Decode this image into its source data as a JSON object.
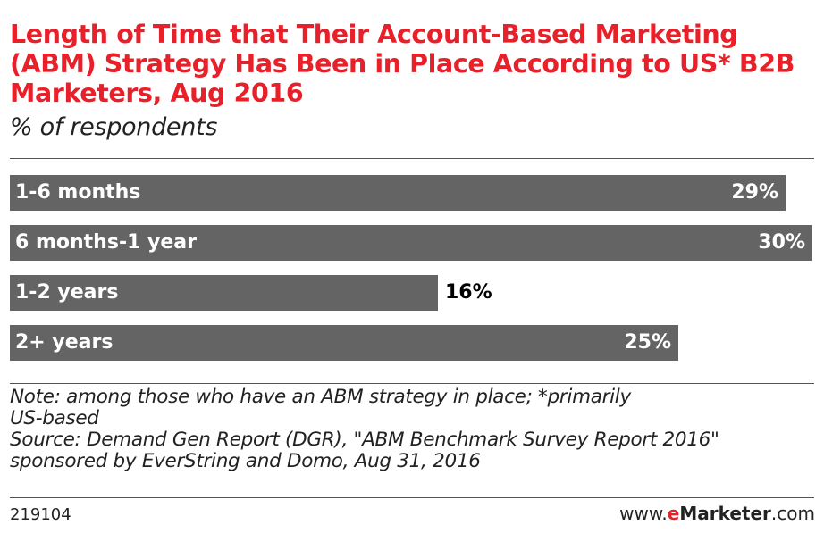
{
  "header": {
    "title": "Length of Time that Their Account-Based Marketing (ABM) Strategy Has Been in Place According to US* B2B Marketers, Aug 2016",
    "subtitle": "% of respondents"
  },
  "chart_data": {
    "type": "bar",
    "orientation": "horizontal",
    "categories": [
      "1-6 months",
      "6 months-1 year",
      "1-2 years",
      "2+ years"
    ],
    "values": [
      29,
      30,
      16,
      25
    ],
    "value_labels": [
      "29%",
      "30%",
      "16%",
      "25%"
    ],
    "unit": "%",
    "xlim": [
      0,
      30
    ],
    "grid": false,
    "bar_color": "#646464"
  },
  "notes": {
    "line1": "Note: among those who have an ABM strategy in place; *primarily",
    "line2": "US-based",
    "line3": "Source: Demand Gen Report (DGR), \"ABM Benchmark Survey Report 2016\"",
    "line4": "sponsored by EverString and Domo, Aug 31, 2016"
  },
  "footer": {
    "chart_id": "219104",
    "brand_prefix": "www.",
    "brand_e": "e",
    "brand_name": "Marketer",
    "brand_suffix": ".com"
  },
  "colors": {
    "title": "#e8202a",
    "bar": "#646464"
  }
}
